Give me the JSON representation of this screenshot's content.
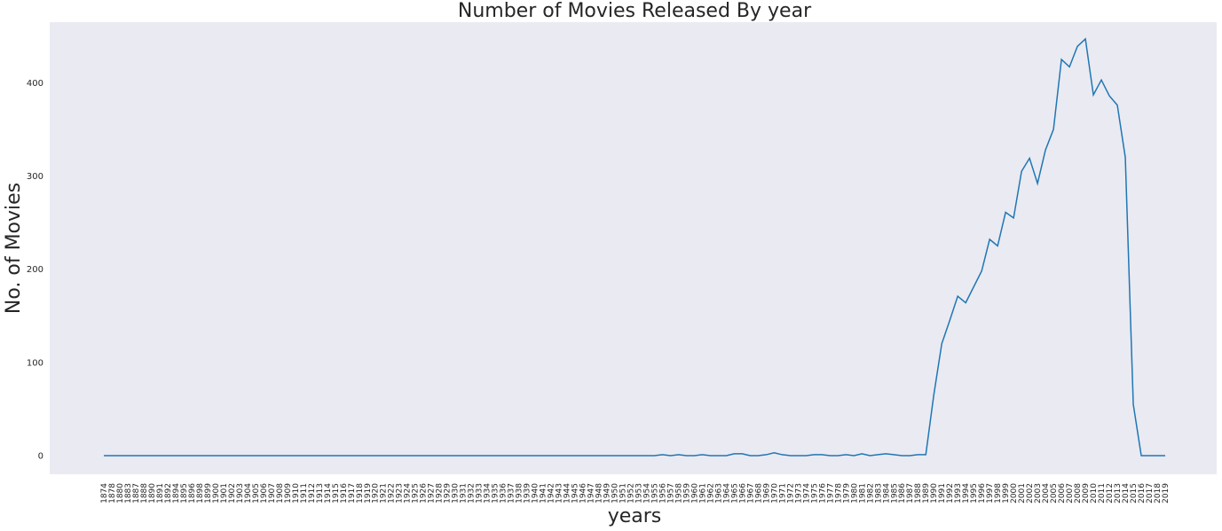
{
  "chart_data": {
    "type": "line",
    "title": "Number of Movies Released By year",
    "xlabel": "years",
    "ylabel": "No. of Movies",
    "grid": false,
    "ylim": [
      -20,
      465
    ],
    "yticks": [
      0,
      100,
      200,
      300,
      400
    ],
    "line_color": "#1f77b4",
    "background_color": "#eaeaf2",
    "x": [
      "1874",
      "1878",
      "1880",
      "1883",
      "1887",
      "1888",
      "1890",
      "1891",
      "1892",
      "1894",
      "1895",
      "1896",
      "1898",
      "1899",
      "1900",
      "1901",
      "1902",
      "1903",
      "1904",
      "1905",
      "1906",
      "1907",
      "1908",
      "1909",
      "1910",
      "1911",
      "1912",
      "1913",
      "1914",
      "1915",
      "1916",
      "1917",
      "1918",
      "1919",
      "1920",
      "1921",
      "1922",
      "1923",
      "1924",
      "1925",
      "1926",
      "1927",
      "1928",
      "1929",
      "1930",
      "1931",
      "1932",
      "1933",
      "1934",
      "1935",
      "1936",
      "1937",
      "1938",
      "1939",
      "1940",
      "1941",
      "1942",
      "1943",
      "1944",
      "1945",
      "1946",
      "1947",
      "1948",
      "1949",
      "1950",
      "1951",
      "1952",
      "1953",
      "1954",
      "1955",
      "1956",
      "1957",
      "1958",
      "1959",
      "1960",
      "1961",
      "1962",
      "1963",
      "1964",
      "1965",
      "1966",
      "1967",
      "1968",
      "1969",
      "1970",
      "1971",
      "1972",
      "1973",
      "1974",
      "1975",
      "1976",
      "1977",
      "1978",
      "1979",
      "1980",
      "1981",
      "1982",
      "1983",
      "1984",
      "1985",
      "1986",
      "1987",
      "1988",
      "1989",
      "1990",
      "1991",
      "1992",
      "1993",
      "1994",
      "1995",
      "1996",
      "1997",
      "1998",
      "1999",
      "2000",
      "2001",
      "2002",
      "2003",
      "2004",
      "2005",
      "2006",
      "2007",
      "2008",
      "2009",
      "2010",
      "2011",
      "2012",
      "2013",
      "2014",
      "2015",
      "2016",
      "2017",
      "2018",
      "2019"
    ],
    "series": [
      {
        "values": [
          0,
          0,
          0,
          0,
          0,
          0,
          0,
          0,
          0,
          0,
          0,
          0,
          0,
          0,
          0,
          0,
          0,
          0,
          0,
          0,
          0,
          0,
          0,
          0,
          0,
          0,
          0,
          0,
          0,
          0,
          0,
          0,
          0,
          0,
          0,
          0,
          0,
          0,
          0,
          0,
          0,
          0,
          0,
          0,
          0,
          0,
          0,
          0,
          0,
          0,
          0,
          0,
          0,
          0,
          0,
          0,
          0,
          0,
          0,
          0,
          0,
          0,
          0,
          0,
          0,
          0,
          0,
          0,
          0,
          0,
          1,
          0,
          1,
          0,
          0,
          1,
          0,
          0,
          0,
          2,
          2,
          0,
          0,
          1,
          3,
          1,
          0,
          0,
          0,
          1,
          1,
          0,
          0,
          1,
          0,
          2,
          0,
          1,
          2,
          1,
          0,
          0,
          1,
          1,
          65,
          120,
          145,
          171,
          164,
          181,
          198,
          232,
          225,
          261,
          255,
          305,
          319,
          292,
          328,
          350,
          425,
          417,
          439,
          447,
          387,
          403,
          386,
          376,
          320,
          55,
          0,
          0,
          0,
          0
        ]
      }
    ]
  }
}
